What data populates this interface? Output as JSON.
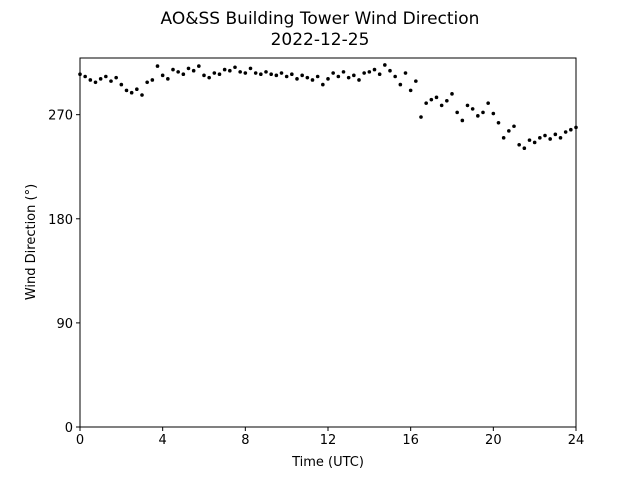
{
  "chart_data": {
    "type": "scatter",
    "title": "AO&SS Building Tower Wind Direction",
    "subtitle": "2022-12-25",
    "x_label": "Time (UTC)",
    "y_label": "Wind Direction (°)",
    "color": "#000000",
    "xlim": [
      0,
      24
    ],
    "xticks": [
      0,
      4,
      8,
      12,
      16,
      20,
      24
    ],
    "ylim": [
      0,
      319
    ],
    "yticks": [
      0,
      90,
      180,
      270
    ],
    "x": [
      0,
      0.25,
      0.5,
      0.75,
      1,
      1.25,
      1.5,
      1.75,
      2,
      2.25,
      2.5,
      2.75,
      3,
      3.25,
      3.5,
      3.75,
      4,
      4.25,
      4.5,
      4.75,
      5,
      5.25,
      5.5,
      5.75,
      6,
      6.25,
      6.5,
      6.75,
      7,
      7.25,
      7.5,
      7.75,
      8,
      8.25,
      8.5,
      8.75,
      9,
      9.25,
      9.5,
      9.75,
      10,
      10.25,
      10.5,
      10.75,
      11,
      11.25,
      11.5,
      11.75,
      12,
      12.25,
      12.5,
      12.75,
      13,
      13.25,
      13.5,
      13.75,
      14,
      14.25,
      14.5,
      14.75,
      15,
      15.25,
      15.5,
      15.75,
      16,
      16.25,
      16.5,
      16.75,
      17,
      17.25,
      17.5,
      17.75,
      18,
      18.25,
      18.5,
      18.75,
      19,
      19.25,
      19.5,
      19.75,
      20,
      20.25,
      20.5,
      20.75,
      21,
      21.25,
      21.5,
      21.75,
      22,
      22.25,
      22.5,
      22.75,
      23,
      23.25,
      23.5,
      23.75,
      24
    ],
    "values": [
      305,
      303,
      300,
      298,
      301,
      303,
      299,
      302,
      296,
      291,
      289,
      292,
      287,
      298,
      300,
      312,
      304,
      301,
      309,
      307,
      305,
      310,
      308,
      312,
      304,
      302,
      306,
      305,
      309,
      308,
      311,
      307,
      306,
      310,
      306,
      305,
      307,
      305,
      304,
      306,
      303,
      305,
      301,
      304,
      302,
      300,
      303,
      296,
      301,
      306,
      303,
      307,
      302,
      304,
      300,
      306,
      307,
      309,
      305,
      313,
      308,
      303,
      296,
      306,
      291,
      299,
      268,
      280,
      283,
      285,
      278,
      282,
      288,
      272,
      265,
      278,
      275,
      269,
      272,
      280,
      271,
      263,
      250,
      256,
      260,
      244,
      241,
      248,
      246,
      250,
      252,
      249,
      253,
      250,
      255,
      257,
      259
    ]
  }
}
